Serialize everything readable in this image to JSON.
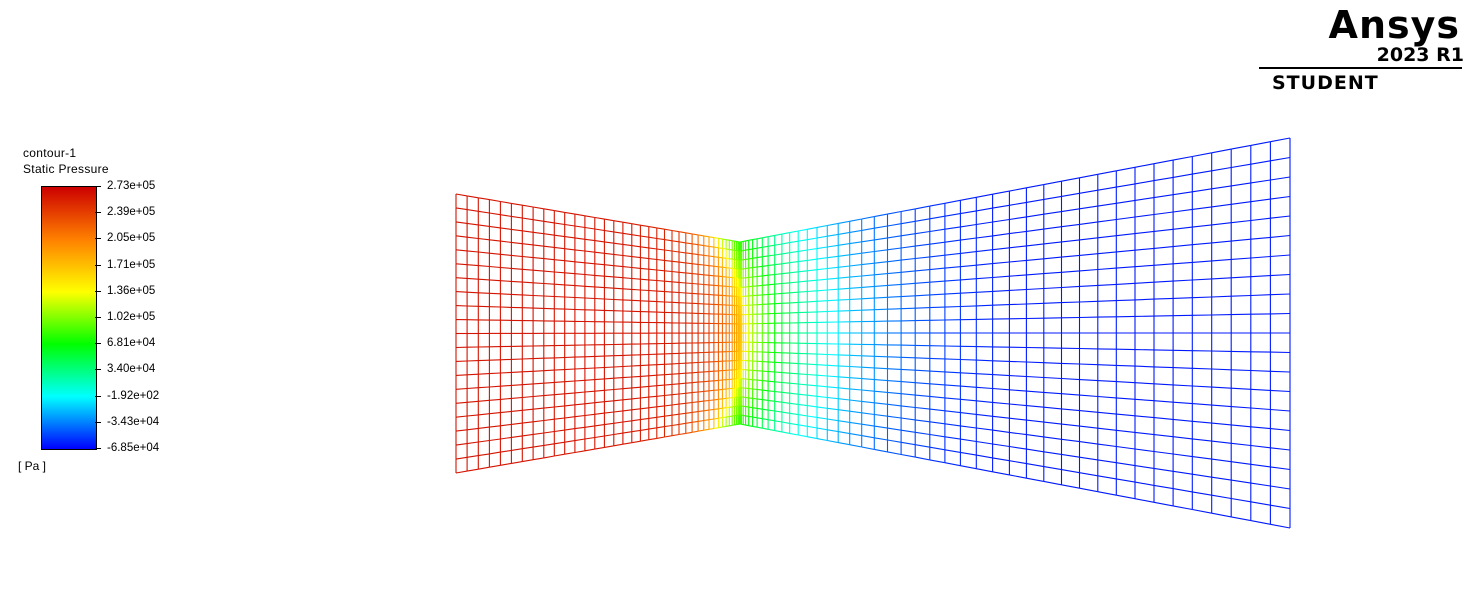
{
  "brand": {
    "name": "Ansys",
    "release": "2023 R1",
    "edition": "STUDENT"
  },
  "legend": {
    "title": "contour-1",
    "variable": "Static Pressure",
    "unit": "[ Pa ]",
    "ticks": [
      "2.73e+05",
      "2.39e+05",
      "2.05e+05",
      "1.71e+05",
      "1.36e+05",
      "1.02e+05",
      "6.81e+04",
      "3.40e+04",
      "-1.92e+02",
      "-3.43e+04",
      "-6.85e+04"
    ],
    "colormap": [
      "#0000ff",
      "#00ffff",
      "#00ff00",
      "#ffff00",
      "#ff8000",
      "#cc0000"
    ]
  },
  "contour": {
    "type": "mesh-contour",
    "field": "Static Pressure",
    "range": [
      -68500,
      273000
    ],
    "inlet_pressure_level": 273000,
    "outlet_pressure_level": -68500
  }
}
